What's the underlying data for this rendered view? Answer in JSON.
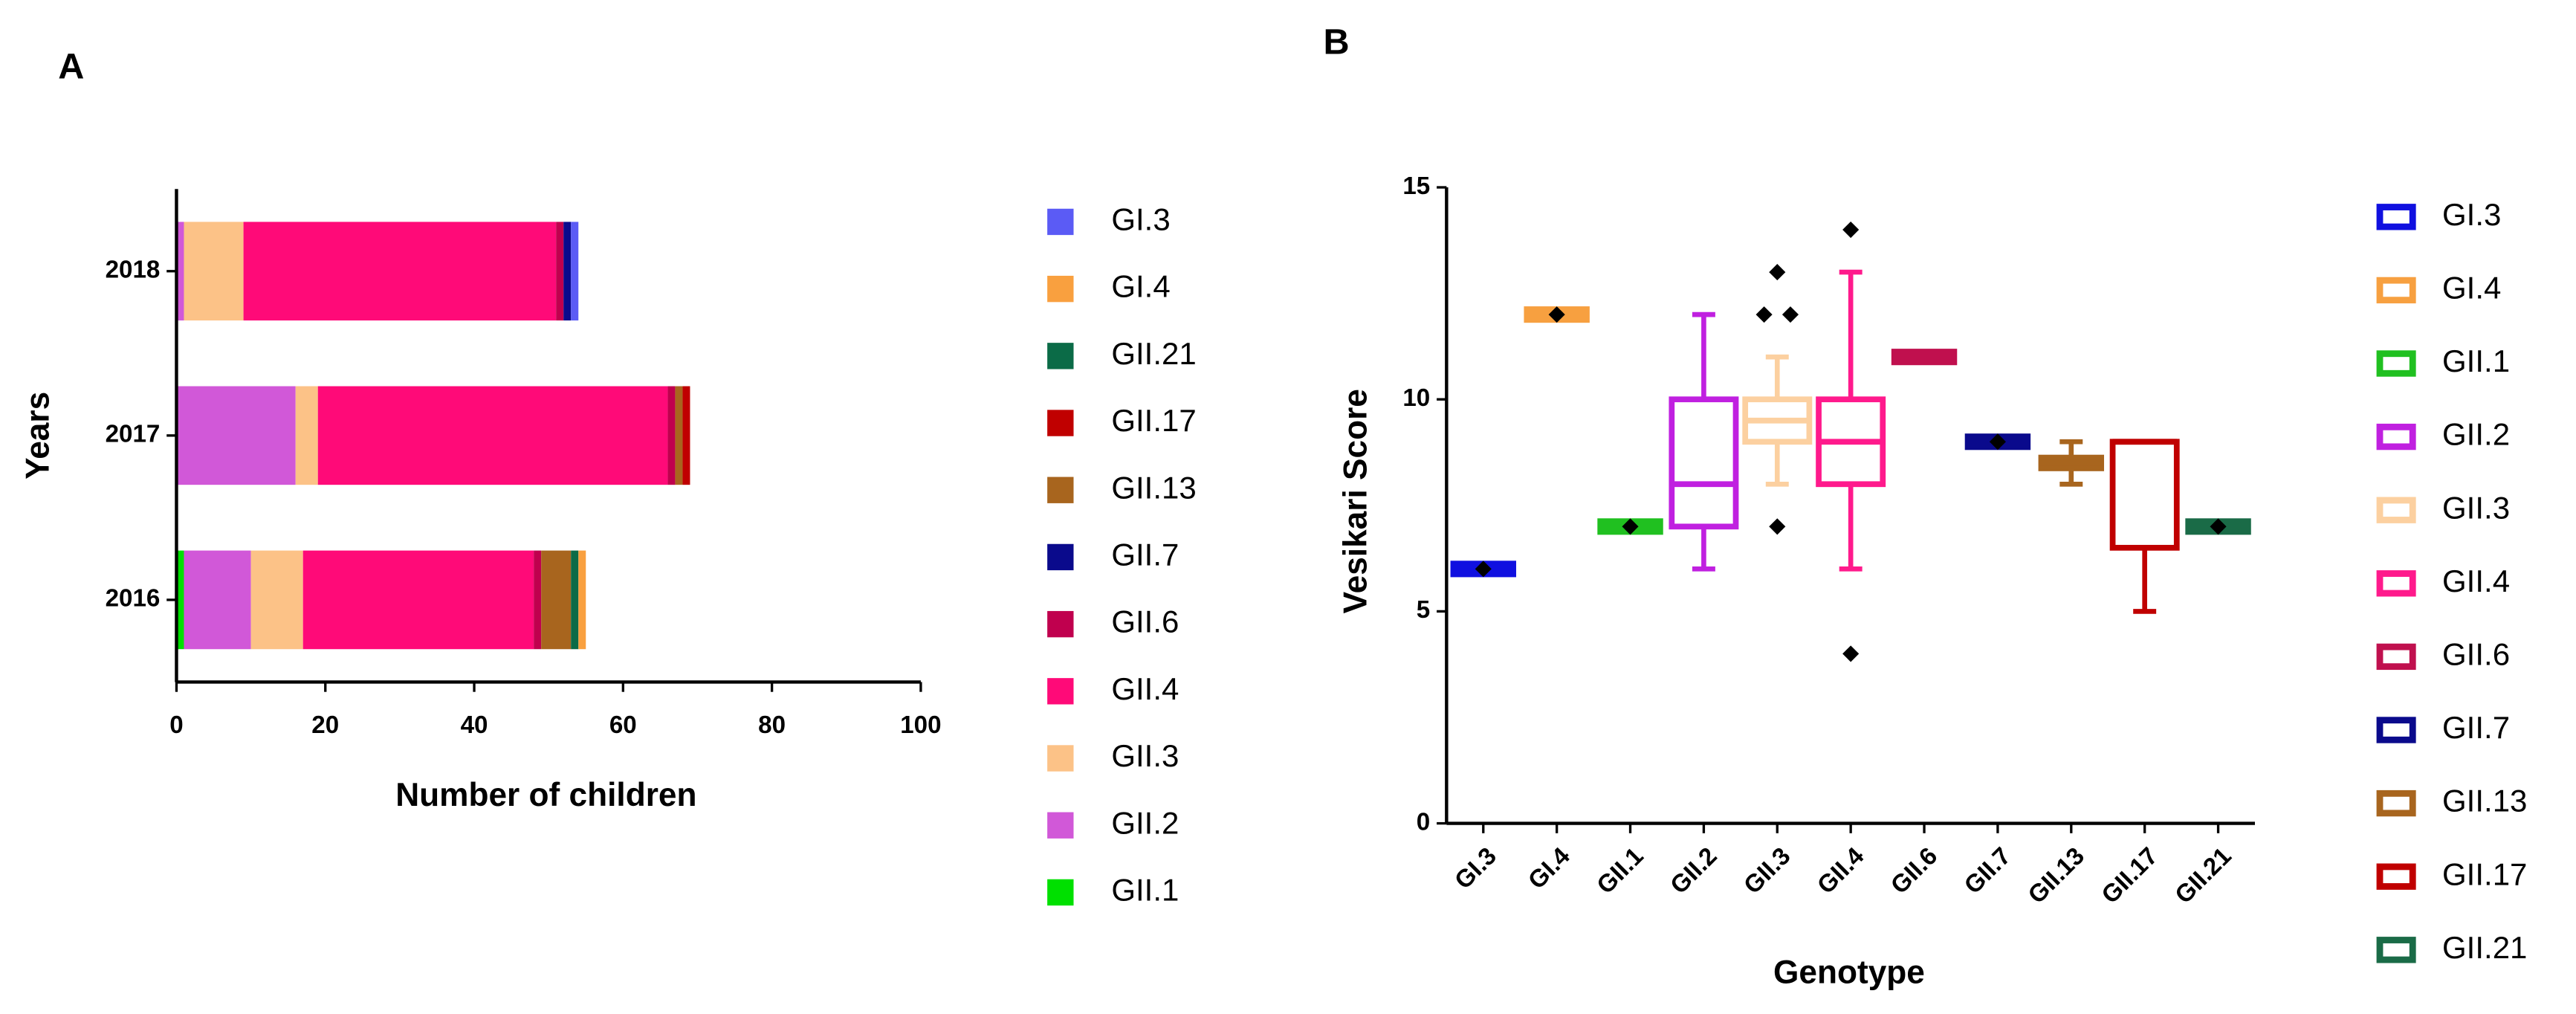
{
  "chart_data": [
    {
      "type": "stacked-bar-horizontal",
      "panel": "A",
      "xlabel": "Number of children",
      "ylabel": "Years",
      "categories": [
        "2016",
        "2017",
        "2018"
      ],
      "xlim": [
        0,
        100
      ],
      "xticks": [
        0,
        20,
        40,
        60,
        80,
        100
      ],
      "legend": "right",
      "series": [
        {
          "name": "GI.3",
          "color": "#5b5bf5",
          "values": [
            0,
            0,
            1
          ]
        },
        {
          "name": "GI.4",
          "color": "#f9a03f",
          "values": [
            1,
            0,
            0
          ]
        },
        {
          "name": "GII.21",
          "color": "#0b6b47",
          "values": [
            1,
            0,
            0
          ]
        },
        {
          "name": "GII.17",
          "color": "#c00000",
          "values": [
            0,
            1,
            0
          ]
        },
        {
          "name": "GII.13",
          "color": "#a8651e",
          "values": [
            4,
            1,
            0
          ]
        },
        {
          "name": "GII.7",
          "color": "#0a0a8c",
          "values": [
            0,
            0,
            1
          ]
        },
        {
          "name": "GII.6",
          "color": "#c0004e",
          "values": [
            1,
            1,
            1
          ]
        },
        {
          "name": "GII.4",
          "color": "#ff0a78",
          "values": [
            31,
            47,
            42
          ]
        },
        {
          "name": "GII.3",
          "color": "#fcc287",
          "values": [
            7,
            3,
            8
          ]
        },
        {
          "name": "GII.2",
          "color": "#d158d8",
          "values": [
            9,
            16,
            1
          ]
        },
        {
          "name": "GII.1",
          "color": "#00e000",
          "values": [
            1,
            0,
            0
          ]
        }
      ]
    },
    {
      "type": "box",
      "panel": "B",
      "xlabel": "Genotype",
      "ylabel": "Vesikari Score",
      "ylim": [
        0,
        15
      ],
      "yticks": [
        0,
        5,
        10,
        15
      ],
      "legend": "right",
      "boxes": [
        {
          "name": "GI.3",
          "color": "#1010e0",
          "min": 6,
          "q1": 6,
          "median": 6,
          "q3": 6,
          "max": 6,
          "points": [
            6
          ]
        },
        {
          "name": "GI.4",
          "color": "#f7a040",
          "min": 12,
          "q1": 12,
          "median": 12,
          "q3": 12,
          "max": 12,
          "points": [
            12
          ]
        },
        {
          "name": "GII.1",
          "color": "#20c020",
          "min": 7,
          "q1": 7,
          "median": 7,
          "q3": 7,
          "max": 7,
          "points": [
            7
          ]
        },
        {
          "name": "GII.2",
          "color": "#c020e0",
          "min": 6,
          "q1": 7,
          "median": 8,
          "q3": 10,
          "max": 12,
          "points": []
        },
        {
          "name": "GII.3",
          "color": "#fcd0a0",
          "min": 8,
          "q1": 9,
          "median": 9.5,
          "q3": 10,
          "max": 11,
          "points": [
            7,
            12,
            12,
            13
          ]
        },
        {
          "name": "GII.4",
          "color": "#ff1a8c",
          "min": 6,
          "q1": 8,
          "median": 9,
          "q3": 10,
          "max": 13,
          "points": [
            4,
            14
          ]
        },
        {
          "name": "GII.6",
          "color": "#c0104e",
          "min": 11,
          "q1": 11,
          "median": 11,
          "q3": 11,
          "max": 11,
          "points": []
        },
        {
          "name": "GII.7",
          "color": "#0a0a8c",
          "min": 9,
          "q1": 9,
          "median": 9,
          "q3": 9,
          "max": 9,
          "points": [
            9
          ]
        },
        {
          "name": "GII.13",
          "color": "#a8651e",
          "min": 8,
          "q1": 8.5,
          "median": 8.5,
          "q3": 8.5,
          "max": 9,
          "points": []
        },
        {
          "name": "GII.17",
          "color": "#c00000",
          "min": 5,
          "q1": 6.5,
          "median": 9,
          "q3": 9,
          "max": 9,
          "points": []
        },
        {
          "name": "GII.21",
          "color": "#1a6b47",
          "min": 7,
          "q1": 7,
          "median": 7,
          "q3": 7,
          "max": 7,
          "points": [
            7
          ]
        }
      ]
    }
  ]
}
